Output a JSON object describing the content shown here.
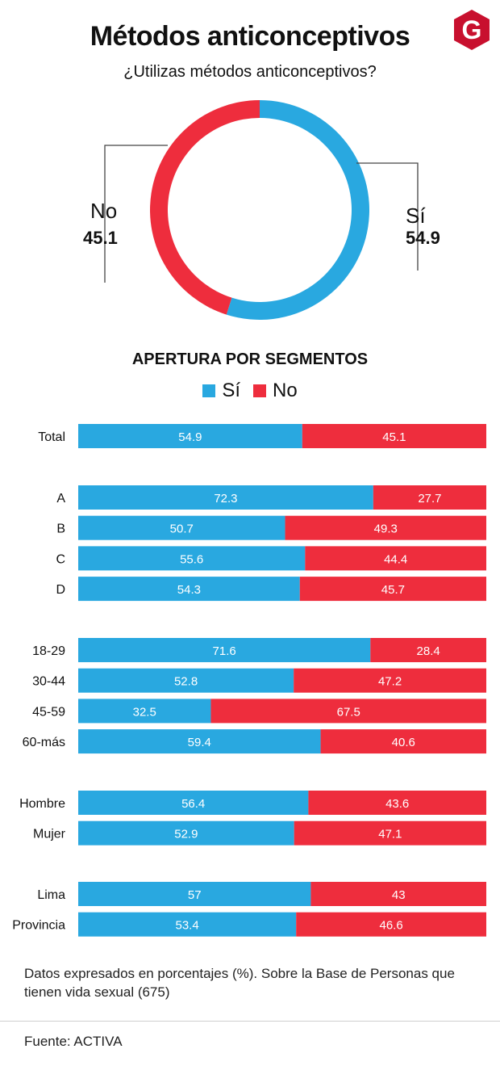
{
  "header": {
    "title": "Métodos anticonceptivos",
    "logo_letter": "G"
  },
  "colors": {
    "si": "#29a8e0",
    "no": "#ee2d3d",
    "logo": "#c8102e"
  },
  "donut": {
    "question": "¿Utilizas métodos anticonceptivos?",
    "si_label": "Sí",
    "si_value": "54.9",
    "no_label": "No",
    "no_value": "45.1"
  },
  "segments": {
    "title": "APERTURA POR SEGMENTOS",
    "legend_si": "Sí",
    "legend_no": "No"
  },
  "chart_data": [
    {
      "type": "pie",
      "title": "¿Utilizas métodos anticonceptivos?",
      "categories": [
        "Sí",
        "No"
      ],
      "values": [
        54.9,
        45.1
      ]
    },
    {
      "type": "bar",
      "orientation": "horizontal-stacked",
      "title": "APERTURA POR SEGMENTOS",
      "categories": [
        "Total",
        "A",
        "B",
        "C",
        "D",
        "18-29",
        "30-44",
        "45-59",
        "60-más",
        "Hombre",
        "Mujer",
        "Lima",
        "Provincia"
      ],
      "groups": [
        [
          0
        ],
        [
          1,
          2,
          3,
          4
        ],
        [
          5,
          6,
          7,
          8
        ],
        [
          9,
          10
        ],
        [
          11,
          12
        ]
      ],
      "series": [
        {
          "name": "Sí",
          "values": [
            54.9,
            72.3,
            50.7,
            55.6,
            54.3,
            71.6,
            52.8,
            32.5,
            59.4,
            56.4,
            52.9,
            57,
            53.4
          ]
        },
        {
          "name": "No",
          "values": [
            45.1,
            27.7,
            49.3,
            44.4,
            45.7,
            28.4,
            47.2,
            67.5,
            40.6,
            43.6,
            47.1,
            43,
            46.6
          ]
        }
      ],
      "legend": "top-center"
    }
  ],
  "footer": {
    "note": "Datos expresados en porcentajes (%). Sobre la Base de Personas que tienen vida sexual (675)",
    "source": "Fuente: ACTIVA"
  }
}
